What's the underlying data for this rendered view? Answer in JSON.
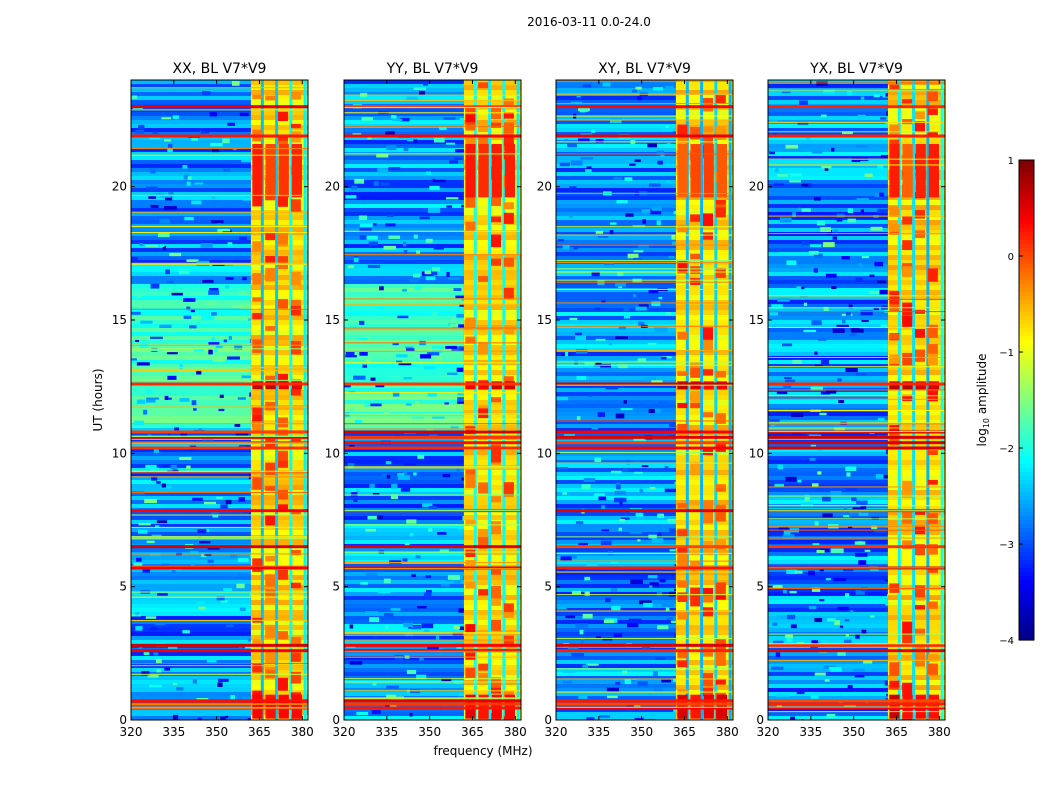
{
  "figure_title": "2016-03-11 0.0-24.0",
  "chart_data": [
    {
      "type": "heatmap",
      "title": "XX, BL V7*V9",
      "ylabel": "UT (hours)",
      "xlabel": "",
      "xlim": [
        320,
        382
      ],
      "ylim": [
        0,
        24
      ],
      "xticks": [
        320,
        335,
        350,
        365,
        380
      ],
      "yticks": [
        0,
        5,
        10,
        15,
        20
      ],
      "xtick_labels": [
        "320",
        "335",
        "350",
        "365",
        "380"
      ],
      "ytick_labels": [
        "0",
        "5",
        "10",
        "15",
        "20"
      ],
      "variant": 0
    },
    {
      "type": "heatmap",
      "title": "YY, BL V7*V9",
      "ylabel": "",
      "xlabel": "frequency (MHz)",
      "xlim": [
        320,
        382
      ],
      "ylim": [
        0,
        24
      ],
      "xticks": [
        320,
        335,
        350,
        365,
        380
      ],
      "yticks": [
        0,
        5,
        10,
        15,
        20
      ],
      "xtick_labels": [
        "320",
        "335",
        "350",
        "365",
        "380"
      ],
      "ytick_labels": [
        "0",
        "5",
        "10",
        "15",
        "20"
      ],
      "variant": 1
    },
    {
      "type": "heatmap",
      "title": "XY, BL V7*V9",
      "ylabel": "",
      "xlabel": "",
      "xlim": [
        320,
        382
      ],
      "ylim": [
        0,
        24
      ],
      "xticks": [
        320,
        335,
        350,
        365,
        380
      ],
      "yticks": [
        0,
        5,
        10,
        15,
        20
      ],
      "xtick_labels": [
        "320",
        "335",
        "350",
        "365",
        "380"
      ],
      "ytick_labels": [
        "0",
        "5",
        "10",
        "15",
        "20"
      ],
      "variant": 2
    },
    {
      "type": "heatmap",
      "title": "YX, BL V7*V9",
      "ylabel": "",
      "xlabel": "",
      "xlim": [
        320,
        382
      ],
      "ylim": [
        0,
        24
      ],
      "xticks": [
        320,
        335,
        350,
        365,
        380
      ],
      "yticks": [
        0,
        5,
        10,
        15,
        20
      ],
      "xtick_labels": [
        "320",
        "335",
        "350",
        "365",
        "380"
      ],
      "ytick_labels": [
        "0",
        "5",
        "10",
        "15",
        "20"
      ],
      "variant": 3
    }
  ],
  "colorbar": {
    "label_main": "amplitude",
    "label_prefix": "log",
    "label_sub": "10",
    "range": [
      -4,
      1
    ],
    "ticks": [
      1,
      0,
      -1,
      -2,
      -3,
      -4
    ],
    "tick_labels": [
      "1",
      "0",
      "−1",
      "−2",
      "−3",
      "−4"
    ],
    "colormap": "jet"
  },
  "colors": {
    "background": "#ffffff",
    "text": "#000000",
    "hot": "#ff6f00",
    "rfi_band": "#ffe500"
  }
}
